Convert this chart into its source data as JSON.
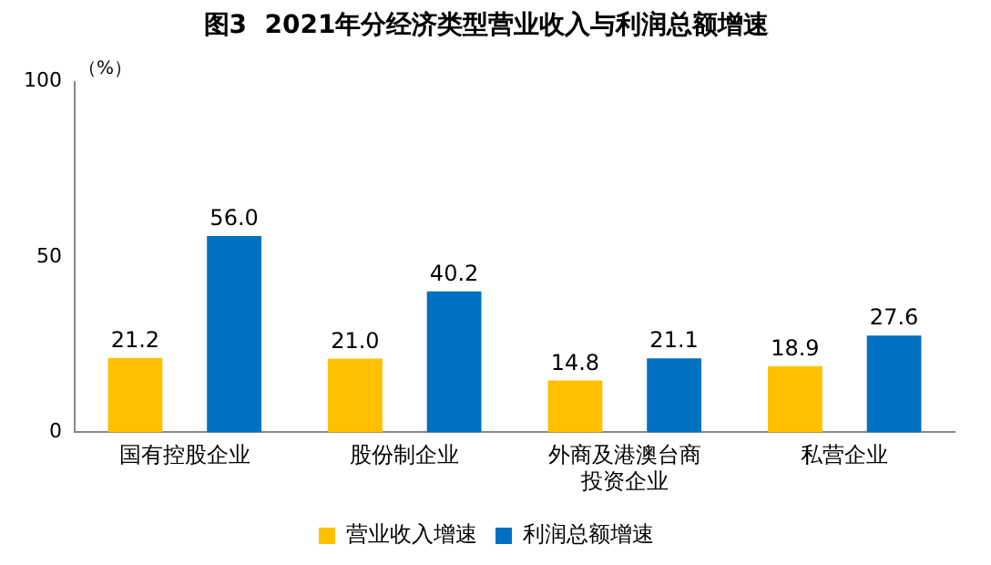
{
  "chart_data": {
    "type": "bar",
    "title": "图3  2021年分经济类型营业收入与利润总额增速",
    "ylabel": "（%）",
    "categories": [
      "国有控股企业",
      "股份制企业",
      "外商及港澳台商投资企业",
      "私营企业"
    ],
    "series": [
      {
        "name": "营业收入增速",
        "color": "#ffc000",
        "values": [
          21.2,
          21.0,
          14.8,
          18.9
        ],
        "value_labels": [
          "21.2",
          "21.0",
          "14.8",
          "18.9"
        ]
      },
      {
        "name": "利润总额增速",
        "color": "#0070c0",
        "values": [
          56.0,
          40.2,
          21.1,
          27.6
        ],
        "value_labels": [
          "56.0",
          "40.2",
          "21.1",
          "27.6"
        ]
      }
    ],
    "ylim": [
      0,
      100
    ],
    "yticks": [
      0,
      50,
      100
    ],
    "grid": false,
    "legend": "bottom"
  }
}
